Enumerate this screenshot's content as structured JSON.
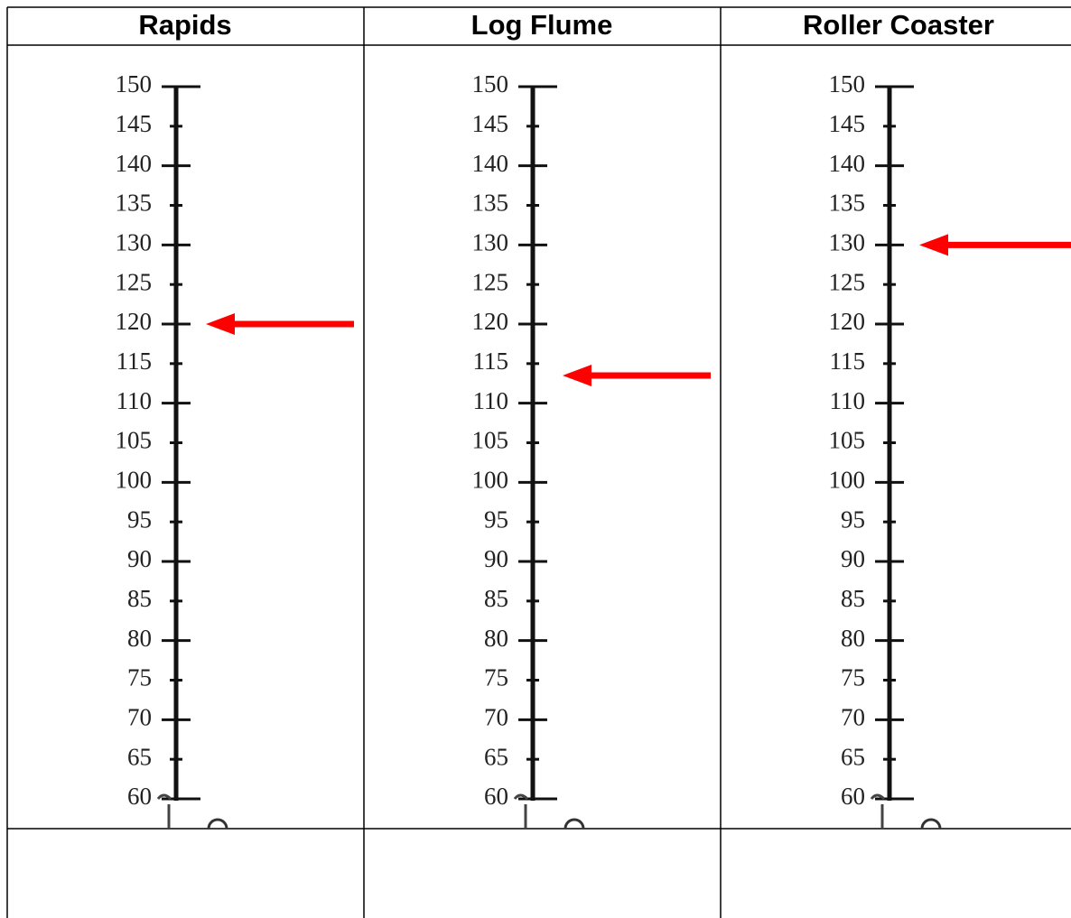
{
  "columns": [
    {
      "title": "Rapids",
      "arrow": 120
    },
    {
      "title": "Log Flume",
      "arrow": 113.5
    },
    {
      "title": "Roller Coaster",
      "arrow": 130
    }
  ],
  "scale": {
    "ylim": [
      60,
      150
    ],
    "ticks": [
      60,
      65,
      70,
      75,
      80,
      85,
      90,
      95,
      100,
      105,
      110,
      115,
      120,
      125,
      130,
      135,
      140,
      145,
      150
    ]
  }
}
